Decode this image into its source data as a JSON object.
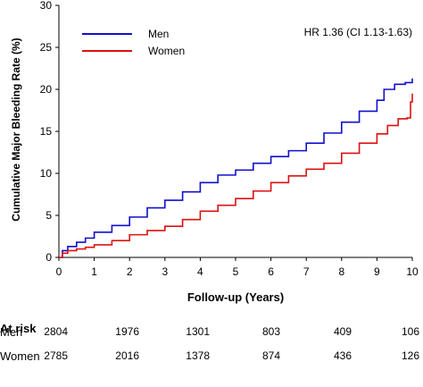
{
  "chart_data": {
    "type": "line",
    "title": "",
    "xlabel": "Follow-up (Years)",
    "ylabel": "Cumulative Major Bleeding Rate (%)",
    "xlim": [
      0,
      10
    ],
    "ylim": [
      0,
      30
    ],
    "xticks": [
      "0",
      "1",
      "2",
      "3",
      "4",
      "5",
      "6",
      "7",
      "8",
      "9",
      "10"
    ],
    "yticks": [
      "0",
      "5",
      "10",
      "15",
      "20",
      "25",
      "30"
    ],
    "grid": false,
    "legend_position": "top-left",
    "annotation": "HR 1.36 (CI 1.13-1.63)",
    "series": [
      {
        "name": "Men",
        "color": "#1010cc",
        "x": [
          0,
          0.1,
          0.25,
          0.5,
          0.75,
          1.0,
          1.5,
          2.0,
          2.5,
          3.0,
          3.5,
          4.0,
          4.5,
          5.0,
          5.5,
          6.0,
          6.5,
          7.0,
          7.5,
          8.0,
          8.5,
          9.0,
          9.2,
          9.5,
          9.8,
          9.95,
          10.0
        ],
        "y": [
          0,
          0.8,
          1.3,
          1.8,
          2.3,
          3.0,
          3.8,
          4.8,
          5.9,
          6.8,
          7.8,
          8.9,
          9.8,
          10.4,
          11.2,
          12.0,
          12.7,
          13.6,
          14.8,
          16.1,
          17.4,
          18.7,
          20.0,
          20.6,
          20.8,
          20.8,
          21.3
        ]
      },
      {
        "name": "Women",
        "color": "#dd1111",
        "x": [
          0,
          0.1,
          0.25,
          0.5,
          0.75,
          1.0,
          1.5,
          2.0,
          2.5,
          3.0,
          3.5,
          4.0,
          4.5,
          5.0,
          5.5,
          6.0,
          6.5,
          7.0,
          7.5,
          8.0,
          8.5,
          9.0,
          9.3,
          9.6,
          9.85,
          9.95,
          10.0
        ],
        "y": [
          0,
          0.5,
          0.8,
          1.0,
          1.2,
          1.5,
          2.0,
          2.7,
          3.2,
          3.7,
          4.5,
          5.5,
          6.2,
          7.0,
          7.9,
          8.9,
          9.7,
          10.5,
          11.2,
          12.4,
          13.6,
          14.7,
          15.7,
          16.5,
          16.6,
          18.5,
          19.5
        ]
      }
    ]
  },
  "at_risk": {
    "title": "At risk",
    "rows": [
      {
        "label": "Men",
        "values": [
          "2804",
          "1976",
          "1301",
          "803",
          "409",
          "106"
        ]
      },
      {
        "label": "Women",
        "values": [
          "2785",
          "2016",
          "1378",
          "874",
          "436",
          "126"
        ]
      }
    ]
  }
}
